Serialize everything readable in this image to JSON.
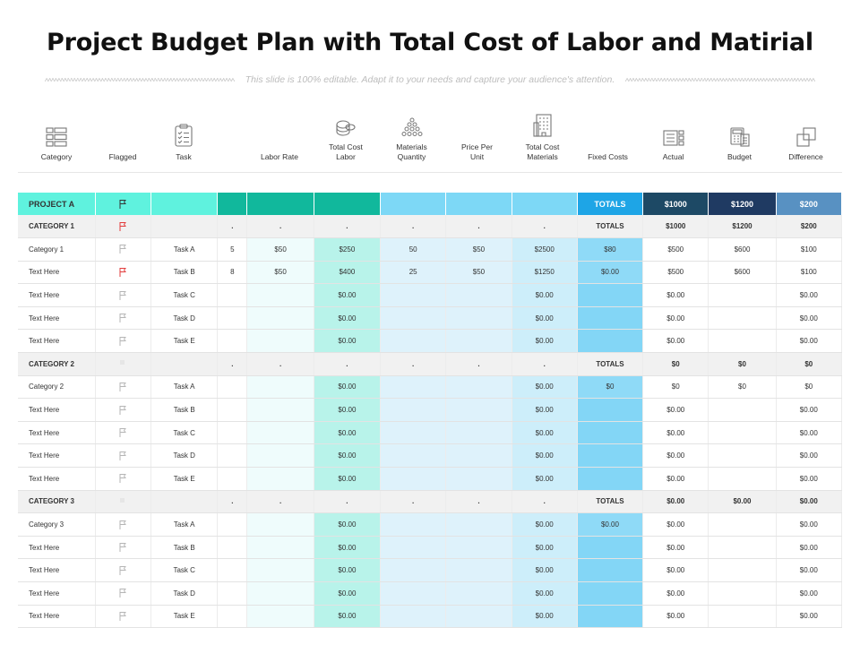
{
  "title": "Project Budget Plan with Total Cost of Labor and Matirial",
  "subtitle": "This slide is 100% editable. Adapt it to your needs and capture your audience's attention.",
  "headers": [
    {
      "label": "Category",
      "icon": "list-icon"
    },
    {
      "label": "Flagged",
      "icon": ""
    },
    {
      "label": "Task",
      "icon": "clipboard-icon"
    },
    {
      "label": "",
      "icon": ""
    },
    {
      "label": "Labor Rate",
      "icon": ""
    },
    {
      "label": "Total Cost\nLabor",
      "icon": "coins-icon"
    },
    {
      "label": "Materials\nQuantity",
      "icon": "stack-icon"
    },
    {
      "label": "Price Per\nUnit",
      "icon": ""
    },
    {
      "label": "Total Cost\nMaterials",
      "icon": "building-icon"
    },
    {
      "label": "Fixed Costs",
      "icon": ""
    },
    {
      "label": "Actual",
      "icon": "server-icon"
    },
    {
      "label": "Budget",
      "icon": "calculator-icon"
    },
    {
      "label": "Difference",
      "icon": "squares-icon"
    }
  ],
  "project": {
    "label": "PROJECT A",
    "totals_label": "TOTALS",
    "actual": "$1000",
    "budget": "$1200",
    "difference": "$200"
  },
  "rows": [
    {
      "type": "cat",
      "flag": "red",
      "cells": [
        "CATEGORY 1",
        "",
        "",
        ".",
        ".",
        ".",
        ".",
        ".",
        ".",
        "TOTALS",
        "$1000",
        "$1200",
        "$200"
      ]
    },
    {
      "type": "item",
      "flag": "grey",
      "cells": [
        "Category 1",
        "",
        "Task A",
        "5",
        "$50",
        "$250",
        "50",
        "$50",
        "$2500",
        "$80",
        "$500",
        "$600",
        "$100"
      ]
    },
    {
      "type": "item",
      "flag": "red",
      "cells": [
        "Text Here",
        "",
        "Task B",
        "8",
        "$50",
        "$400",
        "25",
        "$50",
        "$1250",
        "$0.00",
        "$500",
        "$600",
        "$100"
      ]
    },
    {
      "type": "item",
      "flag": "grey",
      "cells": [
        "Text Here",
        "",
        "Task C",
        "",
        "",
        "$0.00",
        "",
        "",
        "$0.00",
        "",
        "$0.00",
        "",
        "$0.00"
      ]
    },
    {
      "type": "item",
      "flag": "grey",
      "cells": [
        "Text Here",
        "",
        "Task D",
        "",
        "",
        "$0.00",
        "",
        "",
        "$0.00",
        "",
        "$0.00",
        "",
        "$0.00"
      ]
    },
    {
      "type": "item",
      "flag": "grey",
      "cells": [
        "Text Here",
        "",
        "Task E",
        "",
        "",
        "$0.00",
        "",
        "",
        "$0.00",
        "",
        "$0.00",
        "",
        "$0.00"
      ]
    },
    {
      "type": "cat",
      "flag": "none",
      "cells": [
        "CATEGORY 2",
        "",
        "",
        ".",
        ".",
        ".",
        ".",
        ".",
        ".",
        "TOTALS",
        "$0",
        "$0",
        "$0"
      ]
    },
    {
      "type": "item",
      "flag": "grey",
      "cells": [
        "Category 2",
        "",
        "Task A",
        "",
        "",
        "$0.00",
        "",
        "",
        "$0.00",
        "$0",
        "$0",
        "$0",
        "$0"
      ]
    },
    {
      "type": "item",
      "flag": "grey",
      "cells": [
        "Text Here",
        "",
        "Task B",
        "",
        "",
        "$0.00",
        "",
        "",
        "$0.00",
        "",
        "$0.00",
        "",
        "$0.00"
      ]
    },
    {
      "type": "item",
      "flag": "grey",
      "cells": [
        "Text Here",
        "",
        "Task C",
        "",
        "",
        "$0.00",
        "",
        "",
        "$0.00",
        "",
        "$0.00",
        "",
        "$0.00"
      ]
    },
    {
      "type": "item",
      "flag": "grey",
      "cells": [
        "Text Here",
        "",
        "Task D",
        "",
        "",
        "$0.00",
        "",
        "",
        "$0.00",
        "",
        "$0.00",
        "",
        "$0.00"
      ]
    },
    {
      "type": "item",
      "flag": "grey",
      "cells": [
        "Text Here",
        "",
        "Task E",
        "",
        "",
        "$0.00",
        "",
        "",
        "$0.00",
        "",
        "$0.00",
        "",
        "$0.00"
      ]
    },
    {
      "type": "cat",
      "flag": "none",
      "cells": [
        "CATEGORY 3",
        "",
        "",
        ".",
        ".",
        ".",
        ".",
        ".",
        ".",
        "TOTALS",
        "$0.00",
        "$0.00",
        "$0.00"
      ]
    },
    {
      "type": "item",
      "flag": "grey",
      "cells": [
        "Category 3",
        "",
        "Task A",
        "",
        "",
        "$0.00",
        "",
        "",
        "$0.00",
        "$0.00",
        "$0.00",
        "",
        "$0.00"
      ]
    },
    {
      "type": "item",
      "flag": "grey",
      "cells": [
        "Text Here",
        "",
        "Task B",
        "",
        "",
        "$0.00",
        "",
        "",
        "$0.00",
        "",
        "$0.00",
        "",
        "$0.00"
      ]
    },
    {
      "type": "item",
      "flag": "grey",
      "cells": [
        "Text Here",
        "",
        "Task C",
        "",
        "",
        "$0.00",
        "",
        "",
        "$0.00",
        "",
        "$0.00",
        "",
        "$0.00"
      ]
    },
    {
      "type": "item",
      "flag": "grey",
      "cells": [
        "Text Here",
        "",
        "Task D",
        "",
        "",
        "$0.00",
        "",
        "",
        "$0.00",
        "",
        "$0.00",
        "",
        "$0.00"
      ]
    },
    {
      "type": "item",
      "flag": "grey",
      "cells": [
        "Text Here",
        "",
        "Task E",
        "",
        "",
        "$0.00",
        "",
        "",
        "$0.00",
        "",
        "$0.00",
        "",
        "$0.00"
      ]
    }
  ],
  "colors": {
    "project_bar": "#5ff2de",
    "project_teal": "#11b89c",
    "project_light": "#7dd8f6",
    "totals_blue": "#1ea5e6",
    "actual_dark": "#1d4965",
    "budget_navy": "#1f3a62",
    "difference_steel": "#5891c2",
    "flag_red": "#e23b3b",
    "flag_grey": "#b5b5b5"
  }
}
